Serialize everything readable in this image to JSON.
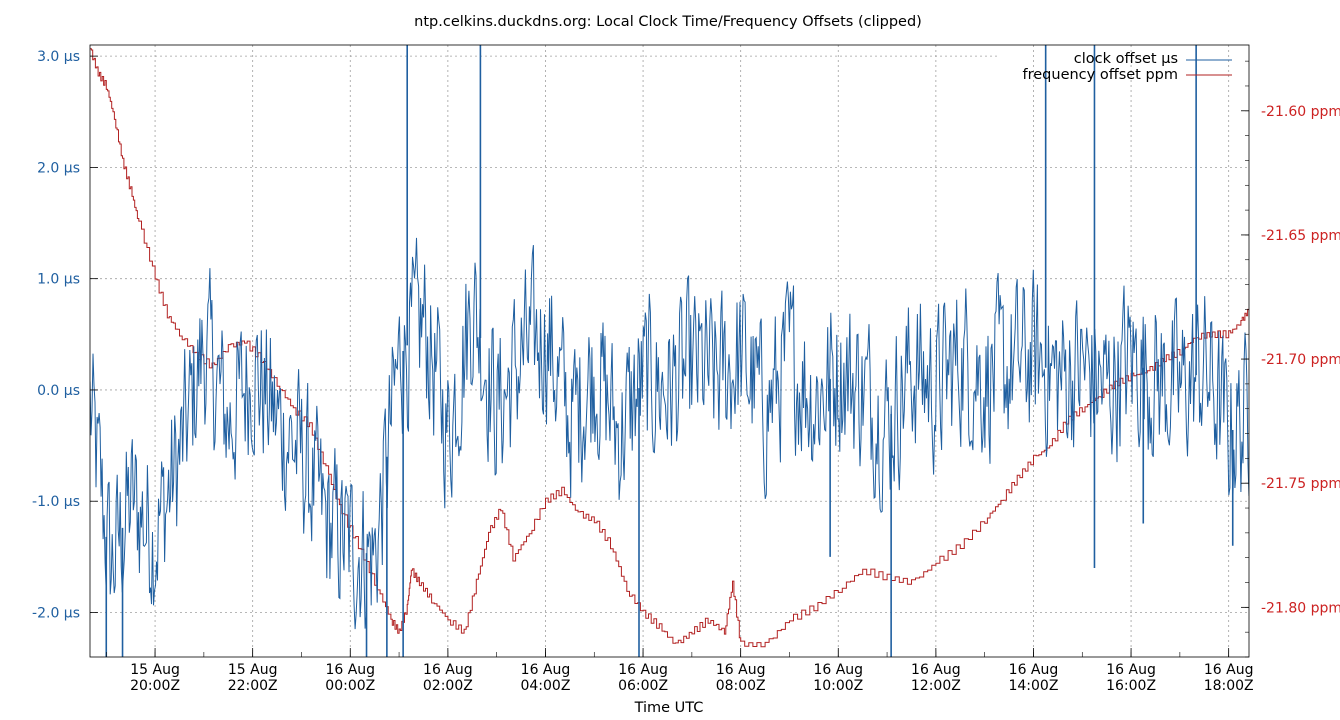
{
  "chart_data": {
    "type": "line",
    "title": "ntp.celkins.duckdns.org: Local Clock Time/Frequency Offsets (clipped)",
    "xlabel": "Time UTC",
    "x_range": [
      "2024-08-15T18:40:00Z",
      "2024-08-16T18:25:00Z"
    ],
    "x_ticks": [
      {
        "day": "15 Aug",
        "time": "20:00Z",
        "at": "2024-08-15T20:00:00Z"
      },
      {
        "day": "15 Aug",
        "time": "22:00Z",
        "at": "2024-08-15T22:00:00Z"
      },
      {
        "day": "16 Aug",
        "time": "00:00Z",
        "at": "2024-08-16T00:00:00Z"
      },
      {
        "day": "16 Aug",
        "time": "02:00Z",
        "at": "2024-08-16T02:00:00Z"
      },
      {
        "day": "16 Aug",
        "time": "04:00Z",
        "at": "2024-08-16T04:00:00Z"
      },
      {
        "day": "16 Aug",
        "time": "06:00Z",
        "at": "2024-08-16T06:00:00Z"
      },
      {
        "day": "16 Aug",
        "time": "08:00Z",
        "at": "2024-08-16T08:00:00Z"
      },
      {
        "day": "16 Aug",
        "time": "10:00Z",
        "at": "2024-08-16T10:00:00Z"
      },
      {
        "day": "16 Aug",
        "time": "12:00Z",
        "at": "2024-08-16T12:00:00Z"
      },
      {
        "day": "16 Aug",
        "time": "14:00Z",
        "at": "2024-08-16T14:00:00Z"
      },
      {
        "day": "16 Aug",
        "time": "16:00Z",
        "at": "2024-08-16T16:00:00Z"
      },
      {
        "day": "16 Aug",
        "time": "18:00Z",
        "at": "2024-08-16T18:00:00Z"
      }
    ],
    "y_left": {
      "unit": "µs",
      "range": [
        -2.4,
        3.1
      ],
      "ticks": [
        {
          "value": -2.0,
          "label": "-2.0 µs"
        },
        {
          "value": -1.0,
          "label": "-1.0 µs"
        },
        {
          "value": 0.0,
          "label": "0.0 µs"
        },
        {
          "value": 1.0,
          "label": "1.0 µs"
        },
        {
          "value": 2.0,
          "label": "2.0 µs"
        },
        {
          "value": 3.0,
          "label": "3.0 µs"
        }
      ]
    },
    "y_right": {
      "unit": "ppm",
      "range": [
        -21.82,
        -21.5735
      ],
      "ticks": [
        {
          "value": -21.8,
          "label": "-21.80 ppm"
        },
        {
          "value": -21.75,
          "label": "-21.75 ppm"
        },
        {
          "value": -21.7,
          "label": "-21.70 ppm"
        },
        {
          "value": -21.65,
          "label": "-21.65 ppm"
        },
        {
          "value": -21.6,
          "label": "-21.60 ppm"
        }
      ]
    },
    "grid": true,
    "legend_position": "top-right",
    "series": [
      {
        "name": "clock offset µs",
        "axis": "left",
        "color": "#1f5fa0",
        "noise_amplitude": 0.85,
        "points": [
          [
            "2024-08-15T18:40:00Z",
            -0.2
          ],
          [
            "2024-08-15T19:05:00Z",
            -1.6
          ],
          [
            "2024-08-15T19:30:00Z",
            -1.0
          ],
          [
            "2024-08-15T20:00:00Z",
            -1.3
          ],
          [
            "2024-08-15T20:30:00Z",
            -0.6
          ],
          [
            "2024-08-15T21:00:00Z",
            0.4
          ],
          [
            "2024-08-15T21:30:00Z",
            -0.3
          ],
          [
            "2024-08-15T22:00:00Z",
            0.2
          ],
          [
            "2024-08-15T22:30:00Z",
            -0.3
          ],
          [
            "2024-08-15T23:00:00Z",
            -0.6
          ],
          [
            "2024-08-15T23:30:00Z",
            -1.2
          ],
          [
            "2024-08-16T00:00:00Z",
            -1.4
          ],
          [
            "2024-08-16T00:30:00Z",
            -1.5
          ],
          [
            "2024-08-16T01:00:00Z",
            0.3
          ],
          [
            "2024-08-16T01:30:00Z",
            0.6
          ],
          [
            "2024-08-16T02:00:00Z",
            -0.4
          ],
          [
            "2024-08-16T02:30:00Z",
            0.8
          ],
          [
            "2024-08-16T03:00:00Z",
            -0.2
          ],
          [
            "2024-08-16T03:30:00Z",
            0.3
          ],
          [
            "2024-08-16T04:00:00Z",
            0.5
          ],
          [
            "2024-08-16T04:30:00Z",
            -0.3
          ],
          [
            "2024-08-16T05:00:00Z",
            0.2
          ],
          [
            "2024-08-16T05:30:00Z",
            -0.4
          ],
          [
            "2024-08-16T06:00:00Z",
            0.1
          ],
          [
            "2024-08-16T06:30:00Z",
            0.0
          ],
          [
            "2024-08-16T07:00:00Z",
            0.2
          ],
          [
            "2024-08-16T07:30:00Z",
            0.1
          ],
          [
            "2024-08-16T08:00:00Z",
            0.3
          ],
          [
            "2024-08-16T08:30:00Z",
            -0.2
          ],
          [
            "2024-08-16T09:00:00Z",
            0.3
          ],
          [
            "2024-08-16T09:30:00Z",
            -0.1
          ],
          [
            "2024-08-16T10:00:00Z",
            0.2
          ],
          [
            "2024-08-16T10:30:00Z",
            0.0
          ],
          [
            "2024-08-16T11:00:00Z",
            -0.3
          ],
          [
            "2024-08-16T11:30:00Z",
            0.2
          ],
          [
            "2024-08-16T12:00:00Z",
            0.0
          ],
          [
            "2024-08-16T12:30:00Z",
            0.3
          ],
          [
            "2024-08-16T13:00:00Z",
            0.1
          ],
          [
            "2024-08-16T13:30:00Z",
            0.2
          ],
          [
            "2024-08-16T14:00:00Z",
            0.3
          ],
          [
            "2024-08-16T14:30:00Z",
            0.1
          ],
          [
            "2024-08-16T15:00:00Z",
            0.2
          ],
          [
            "2024-08-16T15:30:00Z",
            0.0
          ],
          [
            "2024-08-16T16:00:00Z",
            0.3
          ],
          [
            "2024-08-16T16:30:00Z",
            0.1
          ],
          [
            "2024-08-16T17:00:00Z",
            0.0
          ],
          [
            "2024-08-16T17:30:00Z",
            0.2
          ],
          [
            "2024-08-16T18:00:00Z",
            -0.4
          ],
          [
            "2024-08-16T18:25:00Z",
            -0.2
          ]
        ],
        "spikes": [
          [
            "2024-08-15T19:00:00Z",
            -2.4
          ],
          [
            "2024-08-15T19:20:00Z",
            -2.4
          ],
          [
            "2024-08-16T00:20:00Z",
            -2.4
          ],
          [
            "2024-08-16T00:45:00Z",
            -2.4
          ],
          [
            "2024-08-16T01:05:00Z",
            -2.4
          ],
          [
            "2024-08-16T01:10:00Z",
            3.1
          ],
          [
            "2024-08-16T02:40:00Z",
            3.1
          ],
          [
            "2024-08-16T05:55:00Z",
            -2.4
          ],
          [
            "2024-08-16T09:50:00Z",
            -1.5
          ],
          [
            "2024-08-16T11:05:00Z",
            -2.4
          ],
          [
            "2024-08-16T14:15:00Z",
            3.1
          ],
          [
            "2024-08-16T15:15:00Z",
            3.1
          ],
          [
            "2024-08-16T15:15:00Z",
            -1.6
          ],
          [
            "2024-08-16T16:15:00Z",
            -1.2
          ],
          [
            "2024-08-16T17:20:00Z",
            3.1
          ],
          [
            "2024-08-16T18:05:00Z",
            -1.4
          ]
        ]
      },
      {
        "name": "frequency offset ppm",
        "axis": "right",
        "color": "#b22222",
        "points": [
          [
            "2024-08-15T18:40:00Z",
            -21.575
          ],
          [
            "2024-08-15T18:50:00Z",
            -21.585
          ],
          [
            "2024-08-15T19:00:00Z",
            -21.59
          ],
          [
            "2024-08-15T19:10:00Z",
            -21.603
          ],
          [
            "2024-08-15T19:20:00Z",
            -21.62
          ],
          [
            "2024-08-15T19:30:00Z",
            -21.632
          ],
          [
            "2024-08-15T19:40:00Z",
            -21.645
          ],
          [
            "2024-08-15T20:00:00Z",
            -21.667
          ],
          [
            "2024-08-15T20:15:00Z",
            -21.682
          ],
          [
            "2024-08-15T20:30:00Z",
            -21.69
          ],
          [
            "2024-08-15T20:50:00Z",
            -21.698
          ],
          [
            "2024-08-15T21:10:00Z",
            -21.703
          ],
          [
            "2024-08-15T21:30:00Z",
            -21.695
          ],
          [
            "2024-08-15T21:50:00Z",
            -21.693
          ],
          [
            "2024-08-15T22:10:00Z",
            -21.7
          ],
          [
            "2024-08-15T22:30:00Z",
            -21.71
          ],
          [
            "2024-08-15T22:50:00Z",
            -21.72
          ],
          [
            "2024-08-15T23:10:00Z",
            -21.727
          ],
          [
            "2024-08-15T23:30:00Z",
            -21.744
          ],
          [
            "2024-08-15T23:50:00Z",
            -21.762
          ],
          [
            "2024-08-16T00:10:00Z",
            -21.775
          ],
          [
            "2024-08-16T00:30:00Z",
            -21.79
          ],
          [
            "2024-08-16T00:50:00Z",
            -21.805
          ],
          [
            "2024-08-16T01:00:00Z",
            -21.81
          ],
          [
            "2024-08-16T01:10:00Z",
            -21.8
          ],
          [
            "2024-08-16T01:15:00Z",
            -21.785
          ],
          [
            "2024-08-16T01:25:00Z",
            -21.79
          ],
          [
            "2024-08-16T01:40:00Z",
            -21.797
          ],
          [
            "2024-08-16T02:00:00Z",
            -21.805
          ],
          [
            "2024-08-16T02:20:00Z",
            -21.81
          ],
          [
            "2024-08-16T02:35:00Z",
            -21.79
          ],
          [
            "2024-08-16T02:50:00Z",
            -21.77
          ],
          [
            "2024-08-16T03:05:00Z",
            -21.76
          ],
          [
            "2024-08-16T03:20:00Z",
            -21.78
          ],
          [
            "2024-08-16T03:40:00Z",
            -21.77
          ],
          [
            "2024-08-16T04:00:00Z",
            -21.757
          ],
          [
            "2024-08-16T04:20:00Z",
            -21.753
          ],
          [
            "2024-08-16T04:40:00Z",
            -21.762
          ],
          [
            "2024-08-16T05:00:00Z",
            -21.765
          ],
          [
            "2024-08-16T05:20:00Z",
            -21.775
          ],
          [
            "2024-08-16T05:40:00Z",
            -21.793
          ],
          [
            "2024-08-16T06:00:00Z",
            -21.802
          ],
          [
            "2024-08-16T06:20:00Z",
            -21.808
          ],
          [
            "2024-08-16T06:40:00Z",
            -21.815
          ],
          [
            "2024-08-16T07:00:00Z",
            -21.81
          ],
          [
            "2024-08-16T07:20:00Z",
            -21.805
          ],
          [
            "2024-08-16T07:40:00Z",
            -21.81
          ],
          [
            "2024-08-16T07:50:00Z",
            -21.79
          ],
          [
            "2024-08-16T08:00:00Z",
            -21.815
          ],
          [
            "2024-08-16T08:30:00Z",
            -21.815
          ],
          [
            "2024-08-16T09:00:00Z",
            -21.805
          ],
          [
            "2024-08-16T09:30:00Z",
            -21.8
          ],
          [
            "2024-08-16T10:00:00Z",
            -21.793
          ],
          [
            "2024-08-16T10:30:00Z",
            -21.785
          ],
          [
            "2024-08-16T11:00:00Z",
            -21.788
          ],
          [
            "2024-08-16T11:30:00Z",
            -21.79
          ],
          [
            "2024-08-16T12:00:00Z",
            -21.782
          ],
          [
            "2024-08-16T12:30:00Z",
            -21.775
          ],
          [
            "2024-08-16T13:00:00Z",
            -21.765
          ],
          [
            "2024-08-16T13:20:00Z",
            -21.757
          ],
          [
            "2024-08-16T13:40:00Z",
            -21.748
          ],
          [
            "2024-08-16T14:00:00Z",
            -21.74
          ],
          [
            "2024-08-16T14:20:00Z",
            -21.735
          ],
          [
            "2024-08-16T14:40:00Z",
            -21.725
          ],
          [
            "2024-08-16T15:00:00Z",
            -21.72
          ],
          [
            "2024-08-16T15:20:00Z",
            -21.715
          ],
          [
            "2024-08-16T15:40:00Z",
            -21.71
          ],
          [
            "2024-08-16T16:00:00Z",
            -21.707
          ],
          [
            "2024-08-16T16:20:00Z",
            -21.705
          ],
          [
            "2024-08-16T16:40:00Z",
            -21.7
          ],
          [
            "2024-08-16T17:00:00Z",
            -21.697
          ],
          [
            "2024-08-16T17:20:00Z",
            -21.691
          ],
          [
            "2024-08-16T17:40:00Z",
            -21.69
          ],
          [
            "2024-08-16T18:00:00Z",
            -21.69
          ],
          [
            "2024-08-16T18:15:00Z",
            -21.685
          ],
          [
            "2024-08-16T18:25:00Z",
            -21.68
          ]
        ]
      }
    ]
  }
}
